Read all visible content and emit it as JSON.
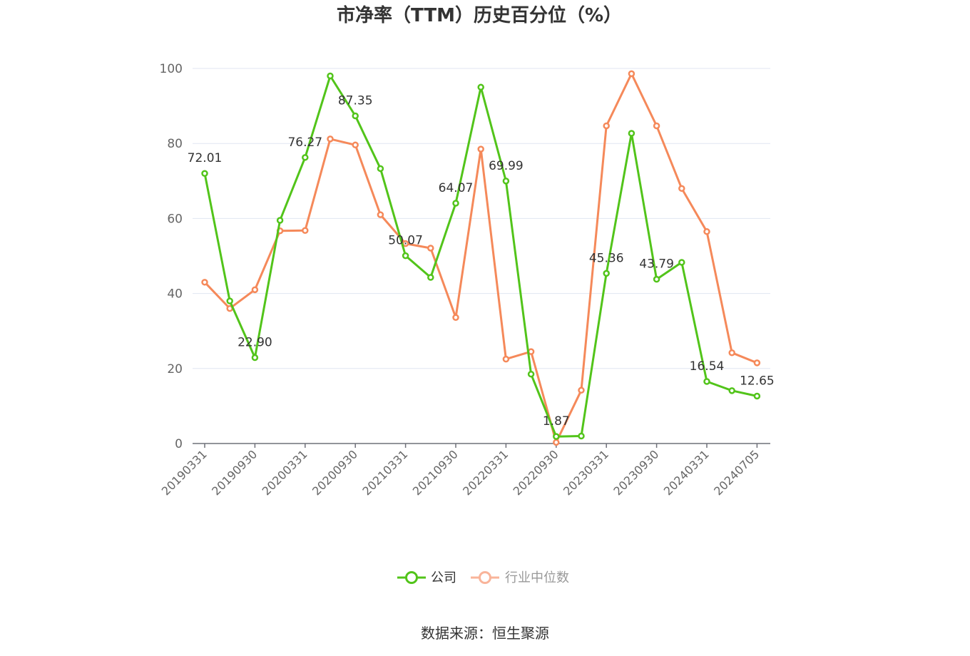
{
  "chart_data": {
    "type": "line",
    "title": "市净率（TTM）历史百分位（%）",
    "xlabel": "",
    "ylabel": "",
    "ylim": [
      0,
      100
    ],
    "yticks": [
      0,
      20,
      40,
      60,
      80,
      100
    ],
    "grid": true,
    "legend_position": "bottom",
    "x": [
      "20190331",
      "20190630",
      "20190930",
      "20191231",
      "20200331",
      "20200630",
      "20200930",
      "20201231",
      "20210331",
      "20210630",
      "20210930",
      "20211231",
      "20220331",
      "20220630",
      "20220930",
      "20221231",
      "20230331",
      "20230630",
      "20230930",
      "20231231",
      "20240331",
      "20240630",
      "20240705"
    ],
    "x_tick_labels": [
      "20190331",
      "20190930",
      "20200331",
      "20200930",
      "20210331",
      "20210930",
      "20220331",
      "20220930",
      "20230331",
      "20230930",
      "20240331",
      "20240705"
    ],
    "series": [
      {
        "name": "公司",
        "color": "#52c41a",
        "values": [
          72.01,
          38.0,
          22.9,
          59.5,
          76.27,
          98.0,
          87.35,
          73.3,
          50.07,
          44.3,
          64.07,
          95.0,
          69.99,
          18.5,
          1.87,
          2.0,
          45.36,
          82.7,
          43.79,
          48.3,
          16.54,
          14.1,
          12.65
        ]
      },
      {
        "name": "行业中位数",
        "color": "#f5895a",
        "values": [
          43.0,
          36.0,
          41.0,
          56.7,
          56.8,
          81.2,
          79.6,
          61.0,
          53.3,
          52.1,
          33.6,
          78.5,
          22.5,
          24.5,
          0.3,
          14.2,
          84.7,
          98.6,
          84.7,
          68.0,
          56.5,
          24.2,
          21.5
        ]
      }
    ],
    "data_labels": [
      {
        "series": 0,
        "index": 0,
        "text": "72.01"
      },
      {
        "series": 0,
        "index": 2,
        "text": "22.90"
      },
      {
        "series": 0,
        "index": 4,
        "text": "76.27"
      },
      {
        "series": 0,
        "index": 6,
        "text": "87.35"
      },
      {
        "series": 0,
        "index": 8,
        "text": "50.07"
      },
      {
        "series": 0,
        "index": 10,
        "text": "64.07"
      },
      {
        "series": 0,
        "index": 12,
        "text": "69.99"
      },
      {
        "series": 0,
        "index": 14,
        "text": "1.87"
      },
      {
        "series": 0,
        "index": 16,
        "text": "45.36"
      },
      {
        "series": 0,
        "index": 18,
        "text": "43.79"
      },
      {
        "series": 0,
        "index": 20,
        "text": "16.54"
      },
      {
        "series": 0,
        "index": 22,
        "text": "12.65"
      }
    ]
  },
  "legend": {
    "items": [
      {
        "label": "公司",
        "color": "#52c41a"
      },
      {
        "label": "行业中位数",
        "color": "#f5895a",
        "text_color": "#999999"
      }
    ]
  },
  "footer": {
    "source": "数据来源：恒生聚源"
  }
}
